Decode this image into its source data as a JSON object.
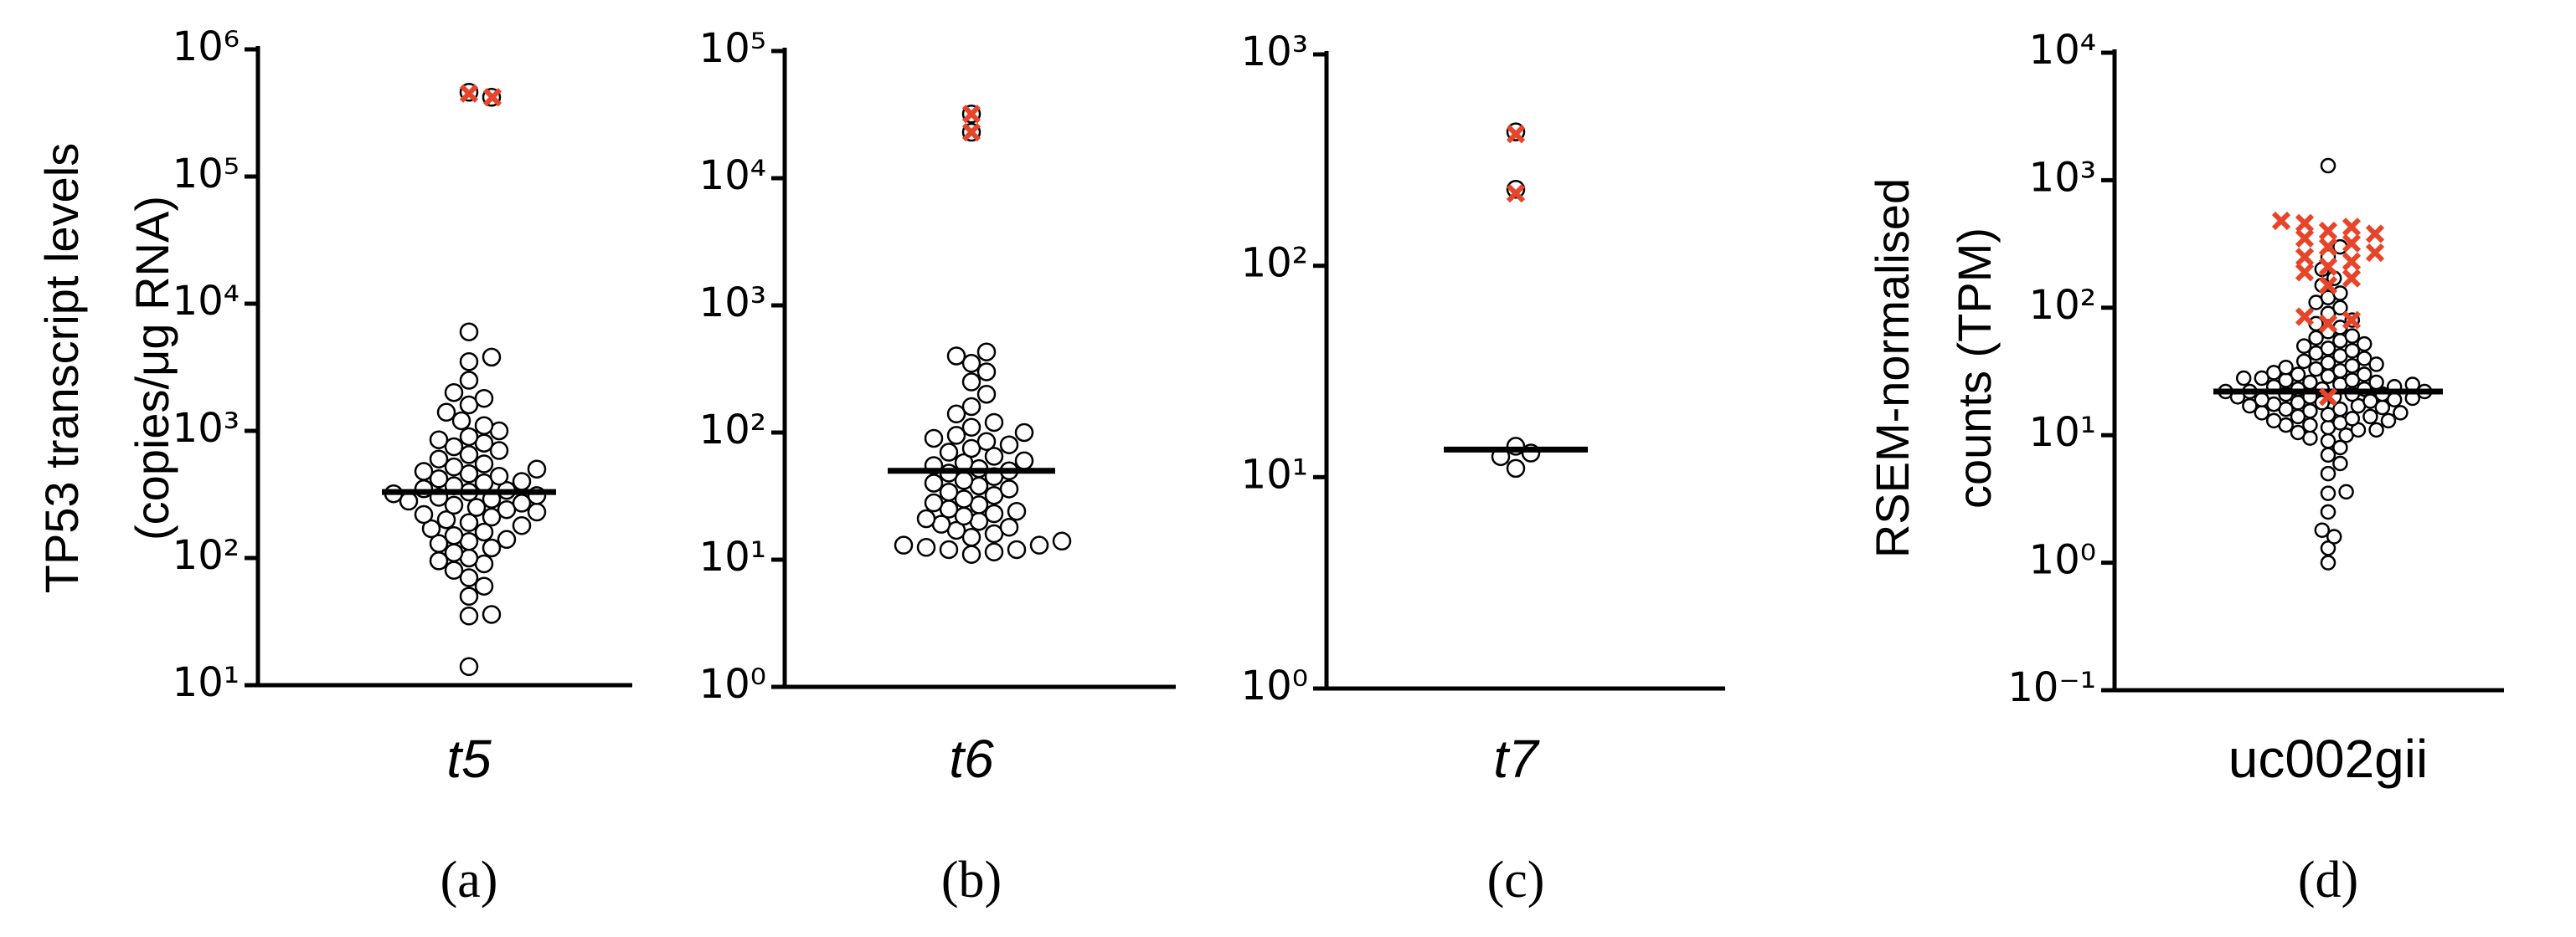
{
  "chart_data": [
    {
      "type": "dot",
      "panel_label": "(a)",
      "category": "t5",
      "category_style": "italic",
      "ylabel": [
        "TP53 transcript levels",
        "(copies/μg RNA)"
      ],
      "log_scale": true,
      "ylim": [
        10,
        1000000
      ],
      "yticks": [
        {
          "value": 10,
          "label": "10¹"
        },
        {
          "value": 100,
          "label": "10²"
        },
        {
          "value": 1000,
          "label": "10³"
        },
        {
          "value": 10000,
          "label": "10⁴"
        },
        {
          "value": 100000,
          "label": "10⁵"
        },
        {
          "value": 1000000,
          "label": "10⁶"
        }
      ],
      "color": "#000000",
      "median": 330,
      "values": [
        14,
        35,
        36,
        50,
        60,
        70,
        80,
        90,
        95,
        100,
        110,
        120,
        130,
        135,
        140,
        150,
        160,
        170,
        180,
        190,
        200,
        210,
        220,
        230,
        240,
        250,
        260,
        270,
        280,
        290,
        300,
        310,
        320,
        330,
        340,
        350,
        370,
        390,
        400,
        420,
        440,
        460,
        480,
        500,
        520,
        550,
        600,
        650,
        700,
        750,
        800,
        850,
        900,
        1000,
        1100,
        1200,
        1400,
        1600,
        1800,
        2000,
        2500,
        3500,
        3800,
        6000,
        460000,
        420000
      ],
      "highlight": {
        "color": "#e8442a",
        "values": [
          450000,
          420000
        ]
      }
    },
    {
      "type": "dot",
      "panel_label": "(b)",
      "category": "t6",
      "category_style": "italic",
      "log_scale": true,
      "ylim": [
        1,
        100000
      ],
      "yticks": [
        {
          "value": 1,
          "label": "10⁰"
        },
        {
          "value": 10,
          "label": "10¹"
        },
        {
          "value": 100,
          "label": "10²"
        },
        {
          "value": 1000,
          "label": "10³"
        },
        {
          "value": 10000,
          "label": "10⁴"
        },
        {
          "value": 100000,
          "label": "10⁵"
        }
      ],
      "color": "#000000",
      "median": 50,
      "values": [
        11,
        11.5,
        12,
        12,
        12.5,
        13,
        13,
        14,
        15,
        16,
        17,
        18,
        19,
        20,
        21,
        22,
        23,
        24,
        25,
        27,
        28,
        30,
        32,
        34,
        36,
        38,
        40,
        42,
        45,
        48,
        50,
        52,
        55,
        58,
        60,
        65,
        70,
        75,
        80,
        85,
        90,
        95,
        100,
        110,
        120,
        140,
        160,
        200,
        250,
        300,
        350,
        400,
        430,
        32000,
        23000
      ],
      "highlight": {
        "color": "#e8442a",
        "values": [
          32000,
          23000
        ]
      }
    },
    {
      "type": "dot",
      "panel_label": "(c)",
      "category": "t7",
      "category_style": "italic",
      "log_scale": true,
      "ylim": [
        1,
        1000
      ],
      "yticks": [
        {
          "value": 1,
          "label": "10⁰"
        },
        {
          "value": 10,
          "label": "10¹"
        },
        {
          "value": 100,
          "label": "10²"
        },
        {
          "value": 1000,
          "label": "10³"
        }
      ],
      "color": "#000000",
      "median": 13.5,
      "values": [
        14,
        13,
        12.5,
        11,
        430,
        230
      ],
      "highlight": {
        "color": "#e8442a",
        "values": [
          420,
          220
        ]
      }
    },
    {
      "type": "dot",
      "panel_label": "(d)",
      "category": "uc002gii",
      "category_style": "normal",
      "ylabel": [
        "RSEM-normalised",
        "counts (TPM)"
      ],
      "log_scale": true,
      "ylim": [
        0.1,
        10000
      ],
      "yticks": [
        {
          "value": 0.1,
          "label": "10⁻¹"
        },
        {
          "value": 1,
          "label": "10⁰"
        },
        {
          "value": 10,
          "label": "10¹"
        },
        {
          "value": 100,
          "label": "10²"
        },
        {
          "value": 1000,
          "label": "10³"
        },
        {
          "value": 10000,
          "label": "10⁴"
        }
      ],
      "color": "#000000",
      "median": 22,
      "values": [
        1.0,
        1.3,
        1.6,
        1.8,
        2.5,
        3.5,
        3.6,
        5,
        6,
        7,
        8,
        9,
        9.5,
        10,
        10.5,
        11,
        11,
        11.5,
        12,
        12,
        12.5,
        13,
        13,
        13.5,
        14,
        14,
        14.5,
        15,
        15,
        15.5,
        16,
        16,
        16.5,
        17,
        17,
        17.5,
        18,
        18,
        18.5,
        19,
        19,
        19.5,
        20,
        20,
        20,
        21,
        21,
        21,
        22,
        22,
        22,
        23,
        23,
        23,
        24,
        24,
        25,
        25,
        26,
        26,
        27,
        27,
        28,
        28,
        29,
        30,
        30,
        31,
        32,
        33,
        34,
        35,
        36,
        37,
        38,
        40,
        42,
        44,
        46,
        48,
        50,
        52,
        55,
        58,
        60,
        65,
        70,
        75,
        80,
        90,
        100,
        110,
        120,
        130,
        150,
        170,
        200,
        250,
        300,
        1300
      ],
      "highlight": {
        "color": "#e8442a",
        "values": [
          20,
          75,
          80,
          85,
          150,
          170,
          190,
          210,
          230,
          250,
          270,
          300,
          320,
          350,
          380,
          400,
          430,
          460,
          480
        ]
      }
    }
  ]
}
